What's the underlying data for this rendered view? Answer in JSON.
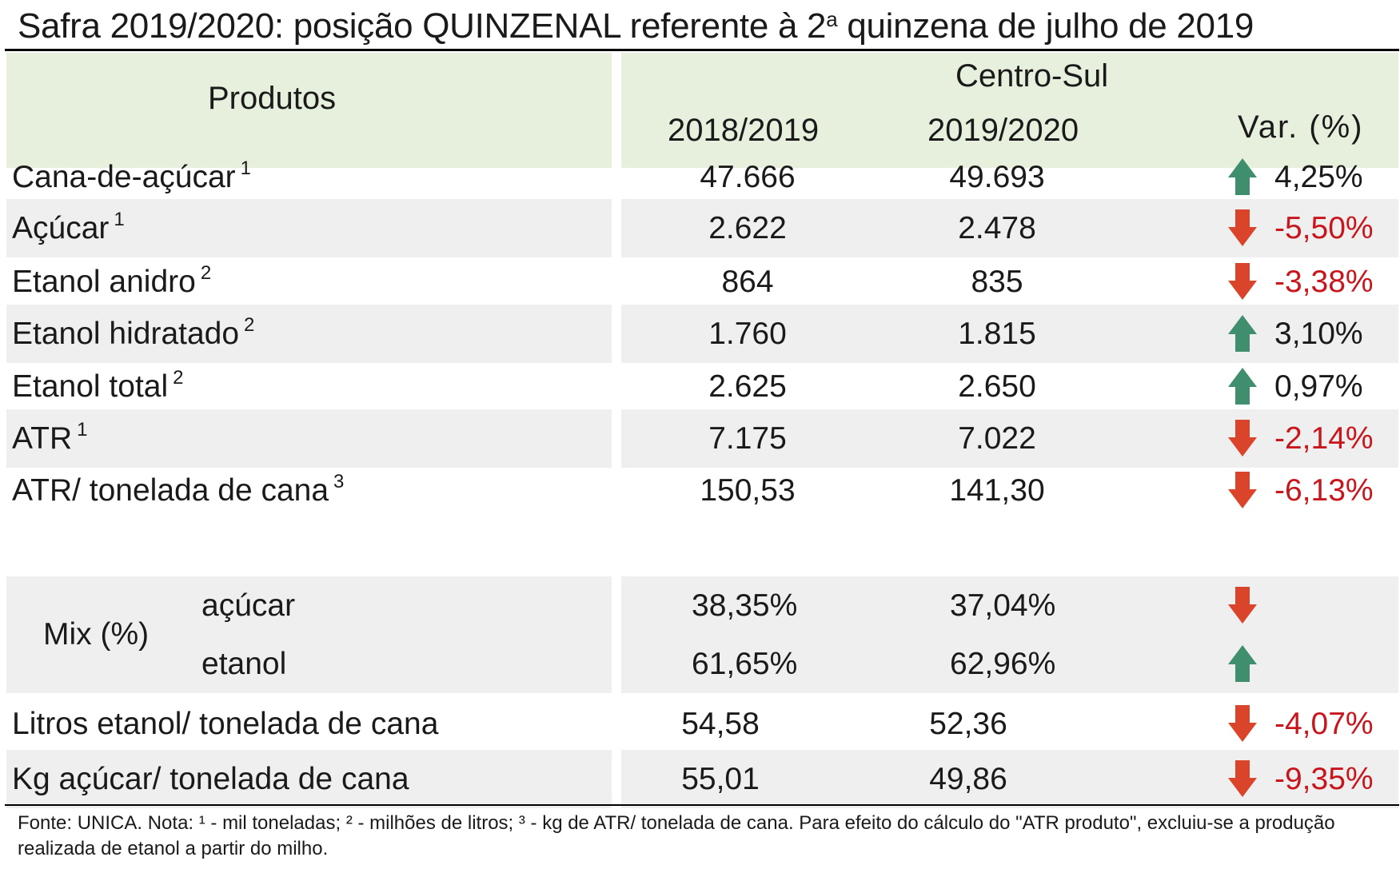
{
  "title": {
    "main": "Safra 2019/2020: posição QUINZENAL referente à 2",
    "sup": "a",
    "tail": " quinzena de julho de 2019"
  },
  "header": {
    "products": "Produtos",
    "region": "Centro-Sul",
    "col1": "2018/2019",
    "col2": "2019/2020",
    "var": "Var. (%)"
  },
  "rows": [
    {
      "label": "Cana-de-açúcar",
      "note": "1",
      "v1": "47.666",
      "v2": "49.693",
      "dir": "up",
      "var": "4,25%"
    },
    {
      "label": "Açúcar",
      "note": "1",
      "v1": "2.622",
      "v2": "2.478",
      "dir": "down",
      "var": "-5,50%"
    },
    {
      "label": "Etanol anidro",
      "note": "2",
      "v1": "864",
      "v2": "835",
      "dir": "down",
      "var": "-3,38%"
    },
    {
      "label": "Etanol hidratado",
      "note": "2",
      "v1": "1.760",
      "v2": "1.815",
      "dir": "up",
      "var": "3,10%"
    },
    {
      "label": "Etanol total",
      "note": "2",
      "v1": "2.625",
      "v2": "2.650",
      "dir": "up",
      "var": "0,97%"
    },
    {
      "label": "ATR",
      "note": "1",
      "v1": "7.175",
      "v2": "7.022",
      "dir": "down",
      "var": "-2,14%"
    },
    {
      "label": "ATR/ tonelada de cana",
      "note": "3",
      "v1": "150,53",
      "v2": "141,30",
      "dir": "down",
      "var": "-6,13%"
    }
  ],
  "mix": {
    "label": "Mix (%)",
    "acucar": {
      "label": "açúcar",
      "v1": "38,35%",
      "v2": "37,04%",
      "dir": "down"
    },
    "etanol": {
      "label": "etanol",
      "v1": "61,65%",
      "v2": "62,96%",
      "dir": "up"
    }
  },
  "rows_bottom": [
    {
      "label": "Litros etanol/ tonelada de cana",
      "v1": "54,58",
      "v2": "52,36",
      "dir": "down",
      "var": "-4,07%"
    },
    {
      "label": "Kg açúcar/ tonelada de cana",
      "v1": "55,01",
      "v2": "49,86",
      "dir": "down",
      "var": "-9,35%"
    }
  ],
  "footnote": "Fonte: UNICA. Nota: ¹ - mil toneladas; ² - milhões de litros; ³ - kg de ATR/ tonelada de cana. Para efeito do cálculo do \"ATR produto\", excluiu-se a produção realizada de etanol a partir do milho.",
  "colors": {
    "up": "#3f8f6e",
    "down": "#d9442a",
    "neg_text": "#c8161d",
    "header_bg": "#e7f0dc",
    "row_shade": "#efefef"
  }
}
